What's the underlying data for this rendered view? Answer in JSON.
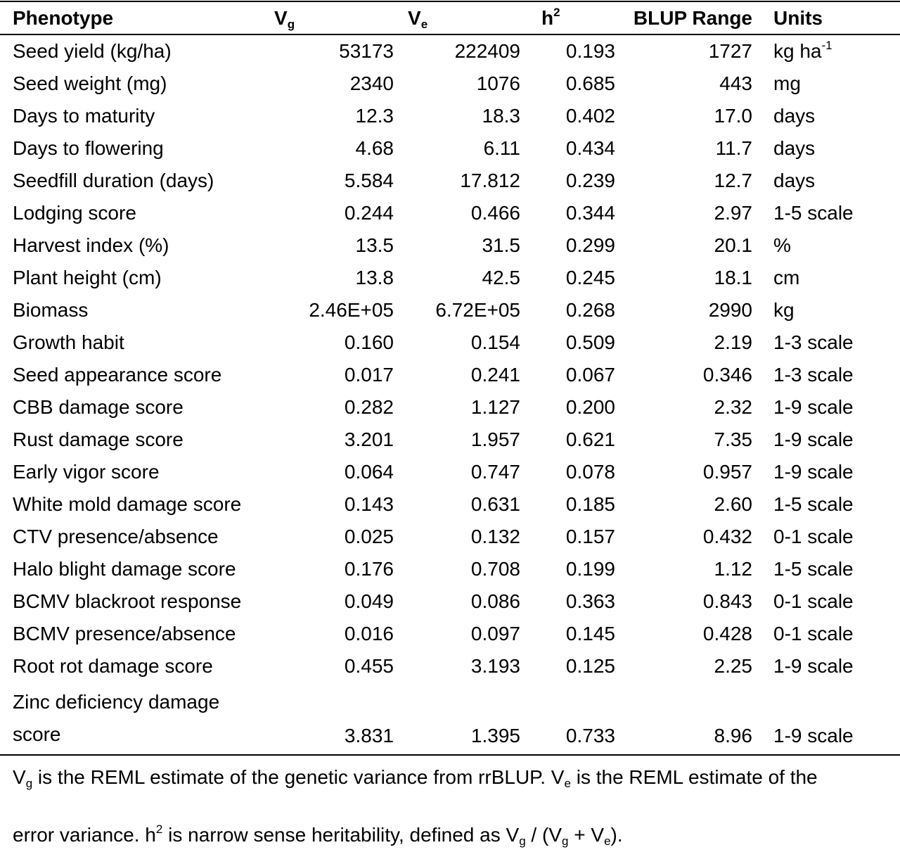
{
  "table": {
    "headers": {
      "phenotype": "Phenotype",
      "vg_base": "V",
      "vg_sub": "g",
      "ve_base": "V",
      "ve_sub": "e",
      "h2_base": "h",
      "h2_sup": "2",
      "blup": "BLUP Range",
      "units": "Units"
    },
    "rows": [
      {
        "phenotype": "Seed yield (kg/ha)",
        "vg": "53173",
        "ve": "222409",
        "h2": "0.193",
        "blup": "1727",
        "units": "kg ha",
        "units_sup": "-1"
      },
      {
        "phenotype": "Seed weight (mg)",
        "vg": "2340",
        "ve": "1076",
        "h2": "0.685",
        "blup": "443",
        "units": "mg",
        "units_sup": ""
      },
      {
        "phenotype": "Days to maturity",
        "vg": "12.3",
        "ve": "18.3",
        "h2": "0.402",
        "blup": "17.0",
        "units": "days",
        "units_sup": ""
      },
      {
        "phenotype": "Days to flowering",
        "vg": "4.68",
        "ve": "6.11",
        "h2": "0.434",
        "blup": "11.7",
        "units": "days",
        "units_sup": ""
      },
      {
        "phenotype": "Seedfill duration (days)",
        "vg": "5.584",
        "ve": "17.812",
        "h2": "0.239",
        "blup": "12.7",
        "units": "days",
        "units_sup": ""
      },
      {
        "phenotype": "Lodging score",
        "vg": "0.244",
        "ve": "0.466",
        "h2": "0.344",
        "blup": "2.97",
        "units": "1-5 scale",
        "units_sup": ""
      },
      {
        "phenotype": "Harvest index (%)",
        "vg": "13.5",
        "ve": "31.5",
        "h2": "0.299",
        "blup": "20.1",
        "units": "%",
        "units_sup": ""
      },
      {
        "phenotype": "Plant height (cm)",
        "vg": "13.8",
        "ve": "42.5",
        "h2": "0.245",
        "blup": "18.1",
        "units": "cm",
        "units_sup": ""
      },
      {
        "phenotype": "Biomass",
        "vg": "2.46E+05",
        "ve": "6.72E+05",
        "h2": "0.268",
        "blup": "2990",
        "units": "kg",
        "units_sup": ""
      },
      {
        "phenotype": "Growth habit",
        "vg": "0.160",
        "ve": "0.154",
        "h2": "0.509",
        "blup": "2.19",
        "units": "1-3 scale",
        "units_sup": ""
      },
      {
        "phenotype": "Seed appearance score",
        "vg": "0.017",
        "ve": "0.241",
        "h2": "0.067",
        "blup": "0.346",
        "units": "1-3 scale",
        "units_sup": ""
      },
      {
        "phenotype": "CBB damage score",
        "vg": "0.282",
        "ve": "1.127",
        "h2": "0.200",
        "blup": "2.32",
        "units": "1-9 scale",
        "units_sup": ""
      },
      {
        "phenotype": "Rust damage score",
        "vg": "3.201",
        "ve": "1.957",
        "h2": "0.621",
        "blup": "7.35",
        "units": "1-9 scale",
        "units_sup": ""
      },
      {
        "phenotype": "Early vigor score",
        "vg": "0.064",
        "ve": "0.747",
        "h2": "0.078",
        "blup": "0.957",
        "units": "1-9 scale",
        "units_sup": ""
      },
      {
        "phenotype": "White mold damage score",
        "vg": "0.143",
        "ve": "0.631",
        "h2": "0.185",
        "blup": "2.60",
        "units": "1-5 scale",
        "units_sup": ""
      },
      {
        "phenotype": "CTV presence/absence",
        "vg": "0.025",
        "ve": "0.132",
        "h2": "0.157",
        "blup": "0.432",
        "units": "0-1 scale",
        "units_sup": ""
      },
      {
        "phenotype": "Halo blight damage score",
        "vg": "0.176",
        "ve": "0.708",
        "h2": "0.199",
        "blup": "1.12",
        "units": "1-5 scale",
        "units_sup": ""
      },
      {
        "phenotype": "BCMV blackroot response",
        "vg": "0.049",
        "ve": "0.086",
        "h2": "0.363",
        "blup": "0.843",
        "units": "0-1 scale",
        "units_sup": ""
      },
      {
        "phenotype": "BCMV presence/absence",
        "vg": "0.016",
        "ve": "0.097",
        "h2": "0.145",
        "blup": "0.428",
        "units": "0-1 scale",
        "units_sup": ""
      },
      {
        "phenotype": "Root rot damage score",
        "vg": "0.455",
        "ve": "3.193",
        "h2": "0.125",
        "blup": "2.25",
        "units": "1-9 scale",
        "units_sup": ""
      },
      {
        "phenotype": "Zinc deficiency damage score",
        "vg": "3.831",
        "ve": "1.395",
        "h2": "0.733",
        "blup": "8.96",
        "units": "1-9 scale",
        "units_sup": "",
        "tall": true
      }
    ]
  },
  "footnote": {
    "line1_a": "V",
    "line1_b": "g",
    "line1_c": " is the REML estimate of the genetic variance from rrBLUP. V",
    "line1_d": "e",
    "line1_e": " is the REML estimate of the",
    "line2_a": "error variance. h",
    "line2_b": "2",
    "line2_c": " is narrow sense heritability, defined as V",
    "line2_d": "g",
    "line2_e": " / (V",
    "line2_f": "g",
    "line2_g": " + V",
    "line2_h": "e",
    "line2_i": ")."
  }
}
